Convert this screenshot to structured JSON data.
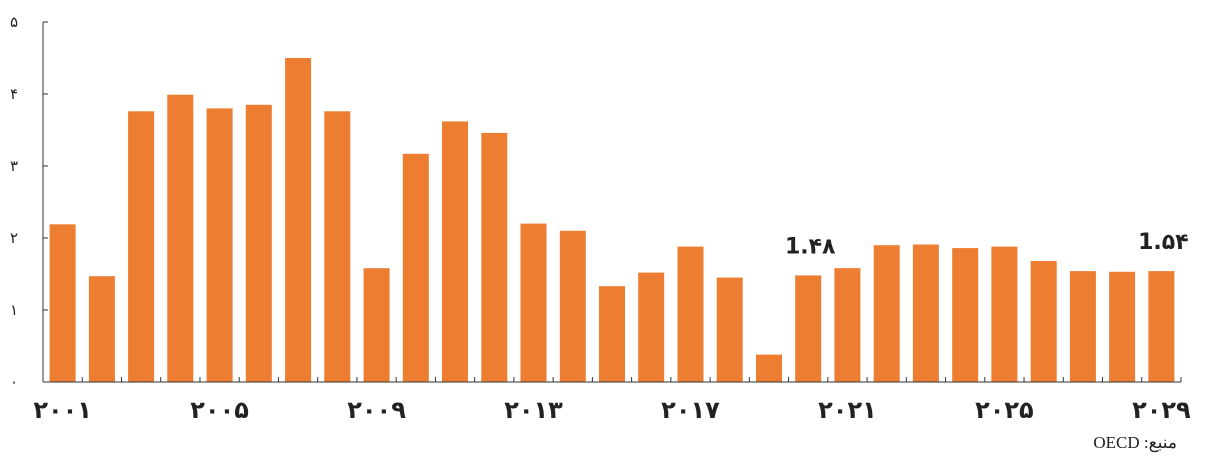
{
  "chart_data": {
    "type": "bar",
    "categories": [
      "2001",
      "2002",
      "2003",
      "2004",
      "2005",
      "2006",
      "2007",
      "2008",
      "2009",
      "2010",
      "2011",
      "2012",
      "2013",
      "2014",
      "2015",
      "2016",
      "2017",
      "2018",
      "2019",
      "2020",
      "2021",
      "2022",
      "2023",
      "2024",
      "2025",
      "2026",
      "2027",
      "2028",
      "2029"
    ],
    "values": [
      2.19,
      1.47,
      3.76,
      3.99,
      3.8,
      3.85,
      4.5,
      3.76,
      1.58,
      3.17,
      3.62,
      3.46,
      2.2,
      2.1,
      1.33,
      1.52,
      1.88,
      1.45,
      0.38,
      1.48,
      1.58,
      1.9,
      1.91,
      1.86,
      1.88,
      1.68,
      1.54,
      1.53,
      1.54
    ],
    "x_tick_labels": [
      "۲۰۰۱",
      "۲۰۰۵",
      "۲۰۰۹",
      "۲۰۱۳",
      "۲۰۱۷",
      "۲۰۲۱",
      "۲۰۲۵",
      "۲۰۲۹"
    ],
    "x_tick_categories": [
      "2001",
      "2005",
      "2009",
      "2013",
      "2017",
      "2021",
      "2025",
      "2029"
    ],
    "y_tick_labels": [
      "۰",
      "۱",
      "۲",
      "۳",
      "۴",
      "۵"
    ],
    "y_ticks": [
      0,
      1,
      2,
      3,
      4,
      5
    ],
    "ylim": [
      0,
      5
    ],
    "data_labels": [
      {
        "category": "2020",
        "text": "1.۴۸"
      },
      {
        "category": "2029",
        "text": "1.۵۴"
      }
    ],
    "bar_color": "#ED7D31",
    "title": "",
    "xlabel": "",
    "ylabel": "",
    "grid": false,
    "legend": "none"
  },
  "source": "منبع: OECD"
}
